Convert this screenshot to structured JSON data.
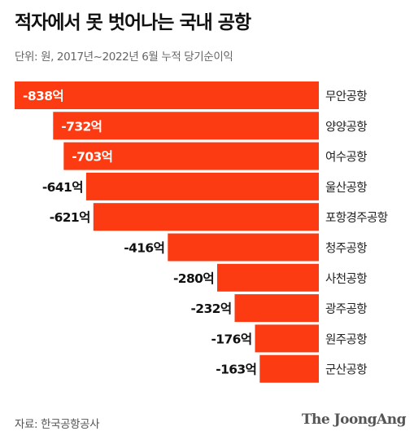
{
  "header": {
    "title": "적자에서 못 벗어나는 국내 공항",
    "subtitle": "단위: 원, 2017년~2022년 6월 누적 당기순이익"
  },
  "footer": {
    "source": "자료: 한국공항공사",
    "logo": "The JoongAng"
  },
  "colors": {
    "bar": "#fd3b12",
    "label_inside": "#ffffff",
    "label_outside": "#111111"
  },
  "chart_data": {
    "type": "bar",
    "orientation": "horizontal",
    "unit": "억",
    "categories": [
      "무안공항",
      "양양공항",
      "여수공항",
      "울산공항",
      "포항경주공항",
      "청주공항",
      "사천공항",
      "광주공항",
      "원주공항",
      "군산공항"
    ],
    "values": [
      -838,
      -732,
      -703,
      -641,
      -621,
      -416,
      -280,
      -232,
      -176,
      -163
    ],
    "value_labels": [
      "-838억",
      "-732억",
      "-703억",
      "-641억",
      "-621억",
      "-416억",
      "-280억",
      "-232억",
      "-176억",
      "-163억"
    ],
    "labels_inside": [
      true,
      true,
      true,
      false,
      false,
      false,
      false,
      false,
      false,
      false
    ],
    "xlim": [
      -838,
      0
    ],
    "grid": false,
    "legend": "none"
  }
}
